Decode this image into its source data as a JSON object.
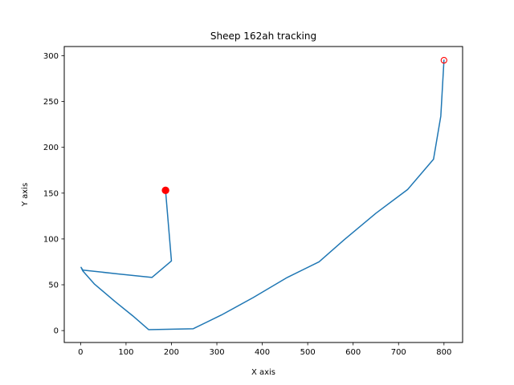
{
  "chart_data": {
    "type": "line",
    "title": "Sheep 162ah tracking",
    "xlabel": "X axis",
    "ylabel": "Y axis",
    "xlim": [
      -36,
      841
    ],
    "ylim": [
      -13,
      310
    ],
    "xticks": [
      0,
      100,
      200,
      300,
      400,
      500,
      600,
      700,
      800
    ],
    "yticks": [
      0,
      50,
      100,
      150,
      200,
      250,
      300
    ],
    "grid": false,
    "series": [
      {
        "color": "#1f77b4",
        "x": [
          187,
          200,
          157,
          80,
          5,
          1,
          5,
          30,
          75,
          115,
          150,
          248,
          310,
          380,
          455,
          525,
          580,
          650,
          720,
          777,
          793,
          800
        ],
        "y": [
          153,
          76,
          58,
          62,
          66,
          69,
          65,
          51,
          32,
          16,
          1,
          2,
          17,
          36,
          58,
          75,
          99,
          128,
          154,
          187,
          234,
          295
        ]
      }
    ],
    "markers": [
      {
        "name": "start",
        "x": 187,
        "y": 153,
        "style": "filled",
        "color": "#ff0000"
      },
      {
        "name": "end",
        "x": 800,
        "y": 295,
        "style": "hollow",
        "color": "#ff0000"
      }
    ]
  }
}
